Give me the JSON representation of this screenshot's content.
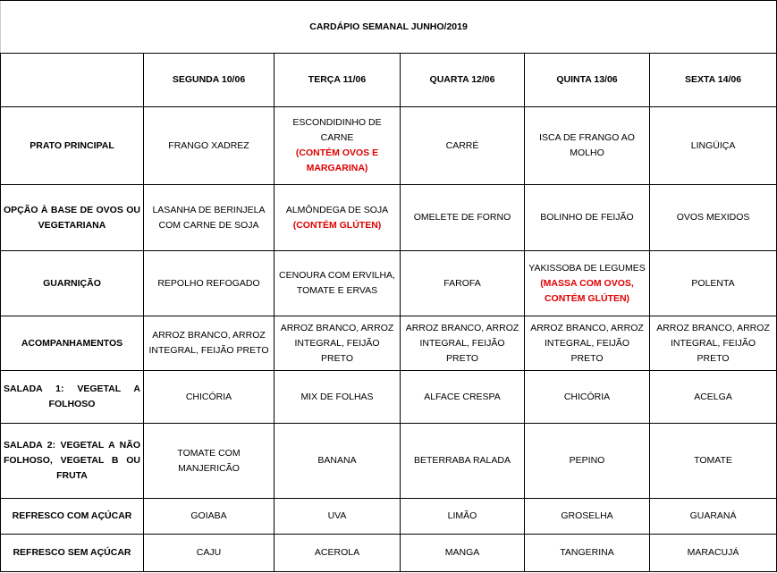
{
  "title": "CARDÁPIO SEMANAL JUNHO/2019",
  "days": [
    "SEGUNDA   10/06",
    "TERÇA 11/06",
    "QUARTA 12/06",
    "QUINTA 13/06",
    "SEXTA 14/06"
  ],
  "colors": {
    "alert": "#e00000",
    "border": "#000000"
  },
  "rows": [
    {
      "label": "PRATO PRINCIPAL",
      "cells": [
        {
          "text": "FRANGO XADREZ"
        },
        {
          "text": "ESCONDIDINHO DE CARNE",
          "note": "(CONTÉM OVOS E MARGARINA)"
        },
        {
          "text": "CARRÉ"
        },
        {
          "text": "ISCA DE FRANGO AO MOLHO"
        },
        {
          "text": "LINGÜIÇA"
        }
      ]
    },
    {
      "label": "OPÇÃO À BASE DE OVOS OU VEGETARIANA",
      "cells": [
        {
          "text": "LASANHA DE BERINJELA COM CARNE DE SOJA"
        },
        {
          "text": "ALMÔNDEGA DE SOJA",
          "note": "(CONTÉM GLÚTEN)"
        },
        {
          "text": "OMELETE DE FORNO"
        },
        {
          "text": "BOLINHO DE FEIJÃO"
        },
        {
          "text": "OVOS MEXIDOS"
        }
      ]
    },
    {
      "label": "GUARNIÇÃO",
      "cells": [
        {
          "text": "REPOLHO REFOGADO"
        },
        {
          "text": "CENOURA COM ERVILHA, TOMATE E ERVAS"
        },
        {
          "text": "FAROFA"
        },
        {
          "text": "YAKISSOBA DE LEGUMES",
          "note": "(MASSA COM OVOS, CONTÉM GLÚTEN)"
        },
        {
          "text": "POLENTA"
        }
      ]
    },
    {
      "label": "ACOMPANHAMENTOS",
      "cells": [
        {
          "text": "ARROZ BRANCO, ARROZ INTEGRAL, FEIJÃO PRETO"
        },
        {
          "text": "ARROZ BRANCO, ARROZ INTEGRAL, FEIJÃO PRETO"
        },
        {
          "text": "ARROZ BRANCO, ARROZ INTEGRAL, FEIJÃO PRETO"
        },
        {
          "text": "ARROZ BRANCO, ARROZ INTEGRAL, FEIJÃO PRETO"
        },
        {
          "text": "ARROZ BRANCO, ARROZ INTEGRAL, FEIJÃO PRETO"
        }
      ]
    },
    {
      "label": "SALADA 1: VEGETAL A FOLHOSO",
      "cells": [
        {
          "text": "CHICÓRIA"
        },
        {
          "text": "MIX DE FOLHAS"
        },
        {
          "text": "ALFACE  CRESPA"
        },
        {
          "text": "CHICÓRIA"
        },
        {
          "text": "ACELGA"
        }
      ]
    },
    {
      "label": "SALADA 2: VEGETAL A NÃO FOLHOSO, VEGETAL B OU FRUTA",
      "cells": [
        {
          "text": "TOMATE COM MANJERICÃO"
        },
        {
          "text": "BANANA"
        },
        {
          "text": "BETERRABA RALADA"
        },
        {
          "text": "PEPINO"
        },
        {
          "text": "TOMATE"
        }
      ]
    },
    {
      "label": "REFRESCO COM AÇÚCAR",
      "cells": [
        {
          "text": "GOIABA"
        },
        {
          "text": "UVA"
        },
        {
          "text": "LIMÃO"
        },
        {
          "text": "GROSELHA"
        },
        {
          "text": "GUARANÁ"
        }
      ]
    },
    {
      "label": "REFRESCO SEM AÇÚCAR",
      "cells": [
        {
          "text": "CAJU"
        },
        {
          "text": "ACEROLA"
        },
        {
          "text": "MANGA"
        },
        {
          "text": "TANGERINA"
        },
        {
          "text": "MARACUJÁ"
        }
      ]
    }
  ]
}
